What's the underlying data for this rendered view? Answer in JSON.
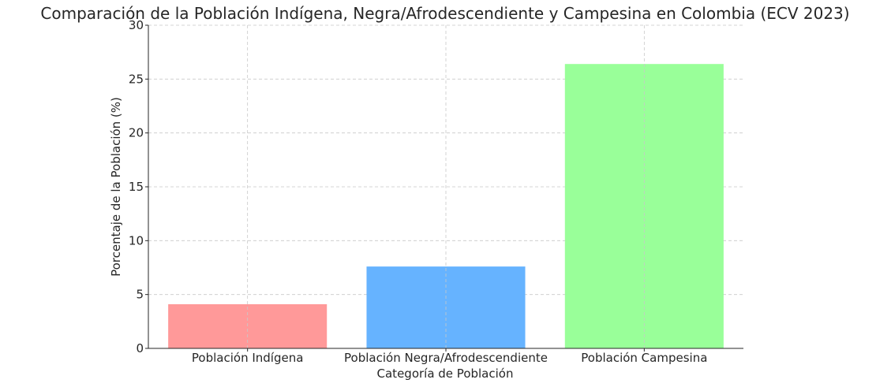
{
  "chart_data": {
    "type": "bar",
    "title": "Comparación de la Población Indígena, Negra/Afrodescendiente y Campesina en Colombia (ECV 2023)",
    "xlabel": "Categoría de Población",
    "ylabel": "Porcentaje de la Población (%)",
    "categories": [
      "Población Indígena",
      "Población Negra/Afrodescendiente",
      "Población Campesina"
    ],
    "values": [
      4.1,
      7.6,
      26.4
    ],
    "colors": [
      "#ff9999",
      "#66b3ff",
      "#99ff99"
    ],
    "ylim": [
      0,
      30
    ],
    "yticks": [
      0,
      5,
      10,
      15,
      20,
      25,
      30
    ],
    "grid": true
  }
}
